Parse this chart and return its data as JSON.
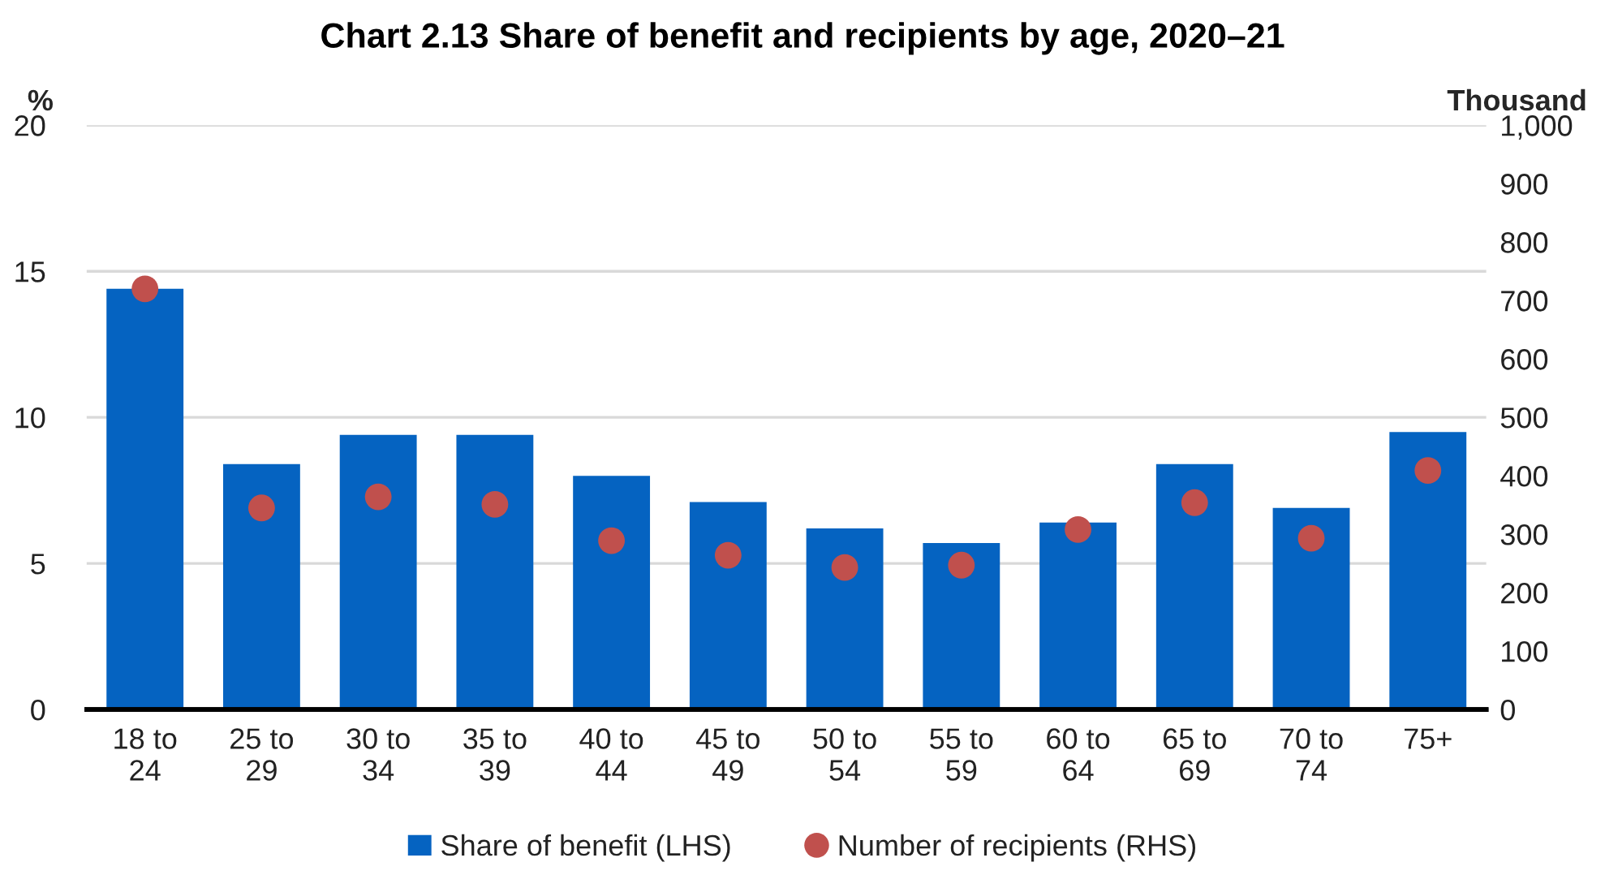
{
  "chart_data": {
    "type": "bar",
    "title": "Chart 2.13 Share of benefit and recipients by age, 2020–21",
    "ylabel": "%",
    "y2label": "Thousand",
    "categories": [
      "18 to\n24",
      "25 to\n29",
      "30 to\n34",
      "35 to\n39",
      "40 to\n44",
      "45 to\n49",
      "50 to\n54",
      "55 to\n59",
      "60 to\n64",
      "65 to\n69",
      "70 to\n74",
      "75+"
    ],
    "series": [
      {
        "name": "Share of benefit (LHS)",
        "color": "#0563c1",
        "values": [
          14.4,
          8.4,
          9.4,
          9.4,
          8.0,
          7.1,
          6.2,
          5.7,
          6.4,
          8.4,
          6.9,
          9.5
        ]
      },
      {
        "name": "Number of recipients (RHS)",
        "type": "scatter",
        "axis": "y2",
        "color": "#c0504d",
        "values": [
          720,
          345,
          364,
          351,
          289,
          264,
          243,
          247,
          308,
          354,
          293,
          409
        ]
      }
    ],
    "ylim": [
      0,
      20
    ],
    "yticks": [
      0,
      5,
      10,
      15,
      20
    ],
    "y2lim": [
      0,
      1000
    ],
    "y2ticks": [
      0,
      100,
      200,
      300,
      400,
      500,
      600,
      700,
      800,
      900,
      {
        "value": 1000,
        "label": "1,000"
      }
    ],
    "grid": "y",
    "legend": "bottom",
    "marker": "circle"
  }
}
